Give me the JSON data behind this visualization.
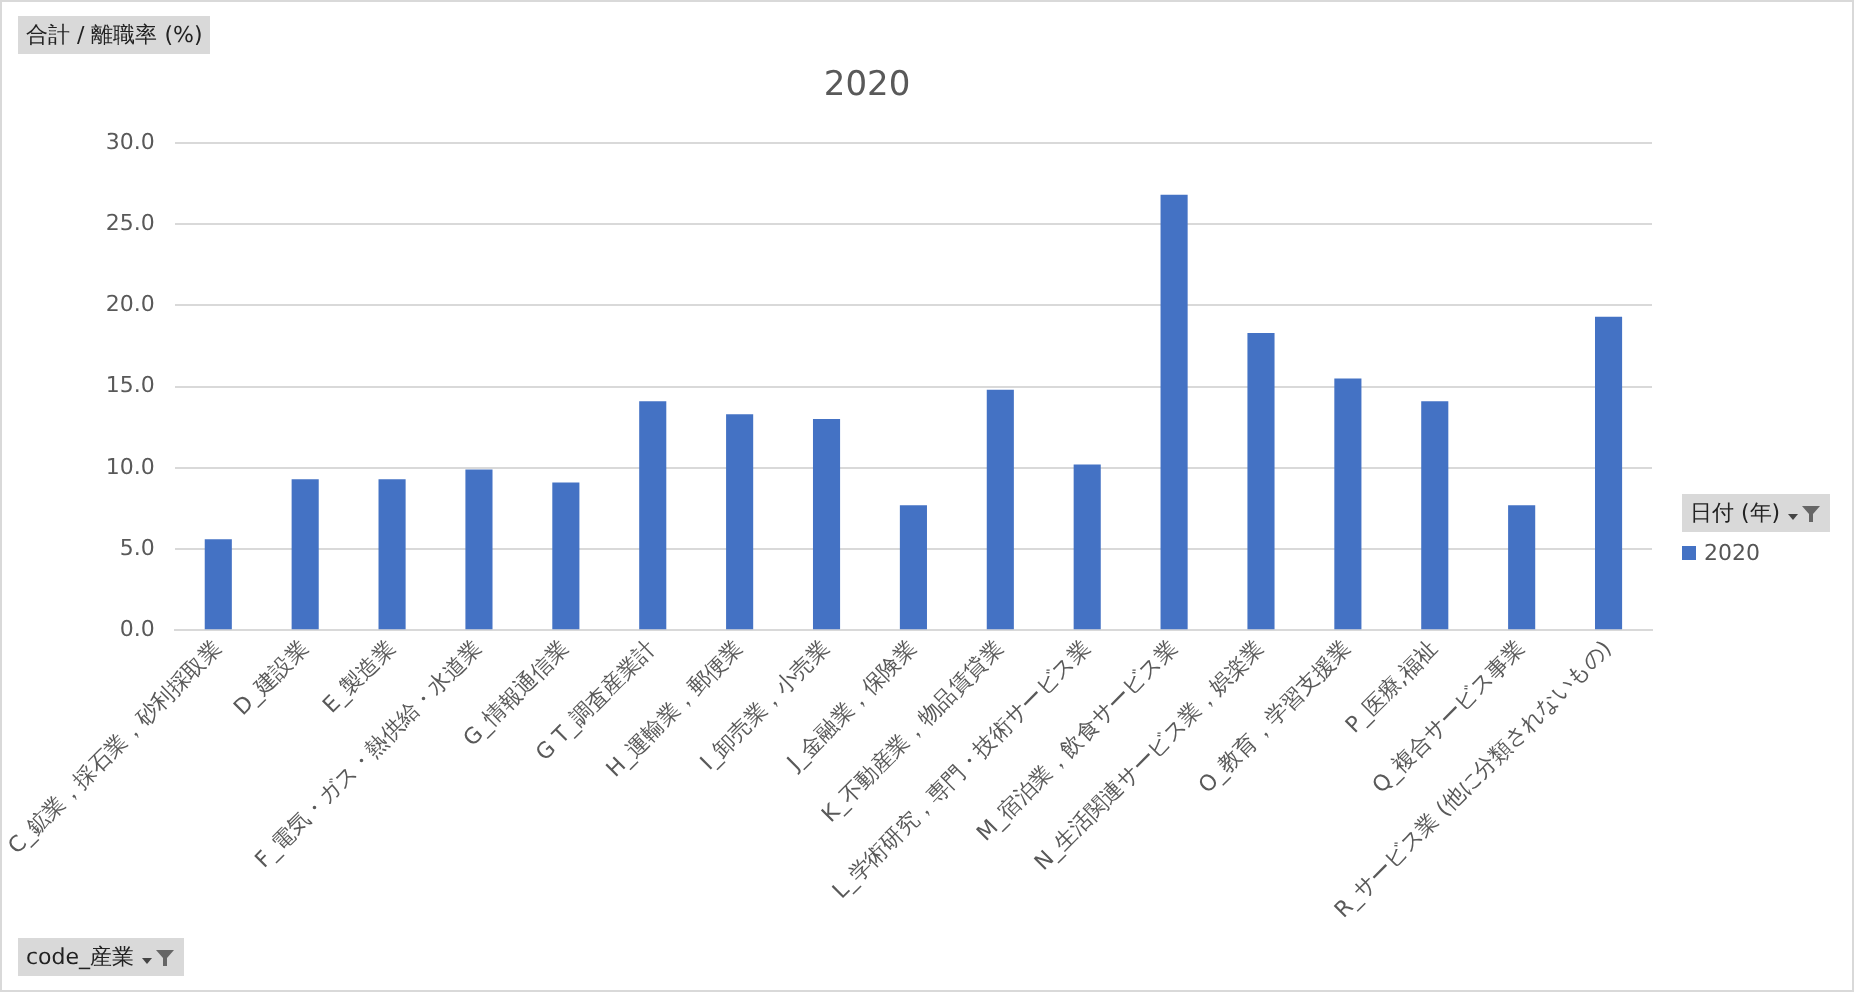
{
  "chart_data": {
    "type": "bar",
    "title": "2020",
    "ylabel": "合計 / 離職率 (%)",
    "xlabel": "code_産業",
    "legend_title": "日付 (年)",
    "categories": [
      "C_鉱業，採石業，砂利採取業",
      "D_建設業",
      "E_製造業",
      "F_電気・ガス・熱供給・水道業",
      "G_情報通信業",
      "G T_調査産業計",
      "H_運輸業，郵便業",
      "I_卸売業，小売業",
      "J_金融業，保険業",
      "K_不動産業，物品賃貸業",
      "L_学術研究，専門・技術サービス業",
      "M_宿泊業，飲食サービス業",
      "N_生活関連サービス業，娯楽業",
      "O_教育，学習支援業",
      "P_医療,福祉",
      "Q_複合サービス事業",
      "R_サービス業 (他に分類されないもの)"
    ],
    "series": [
      {
        "name": "2020",
        "color": "#4472c4",
        "values": [
          5.6,
          9.3,
          9.3,
          9.9,
          9.1,
          14.1,
          13.3,
          13.0,
          7.7,
          14.8,
          10.2,
          26.8,
          18.3,
          15.5,
          14.1,
          7.7,
          19.3
        ]
      }
    ],
    "ylim": [
      0,
      30
    ],
    "yticks": [
      {
        "value": 0,
        "label": "0.0"
      },
      {
        "value": 5,
        "label": "5.0"
      },
      {
        "value": 10,
        "label": "10.0"
      },
      {
        "value": 15,
        "label": "15.0"
      },
      {
        "value": 20,
        "label": "20.0"
      },
      {
        "value": 25,
        "label": "25.0"
      },
      {
        "value": 30,
        "label": "30.0"
      }
    ],
    "grid": "y",
    "legend": "right"
  }
}
